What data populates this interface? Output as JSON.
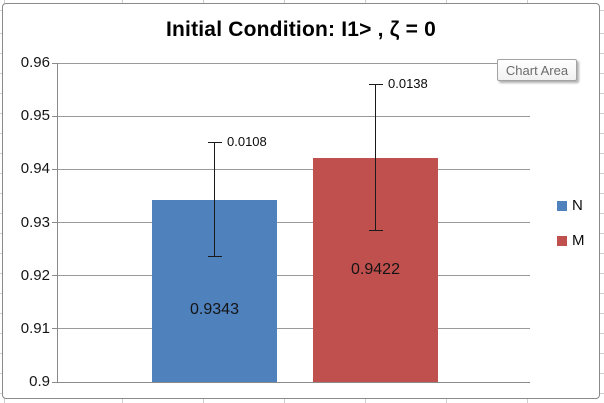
{
  "tooltip": {
    "label": "Chart Area"
  },
  "chart_data": {
    "type": "bar",
    "title": "Initial Condition: I1> , ζ = 0",
    "categories": [
      ""
    ],
    "series": [
      {
        "name": "N",
        "color": "#4F81BD",
        "values": [
          0.9343
        ],
        "errors": [
          0.0108
        ],
        "value_labels": [
          "0.9343"
        ],
        "error_labels": [
          "0.0108"
        ]
      },
      {
        "name": "M",
        "color": "#C0504D",
        "values": [
          0.9422
        ],
        "errors": [
          0.0138
        ],
        "value_labels": [
          "0.9422"
        ],
        "error_labels": [
          "0.0138"
        ]
      }
    ],
    "xlabel": "",
    "ylabel": "",
    "ylim": [
      0.9,
      0.96
    ],
    "yticks": [
      {
        "value": 0.96,
        "label": "0.96"
      },
      {
        "value": 0.95,
        "label": "0.95"
      },
      {
        "value": 0.94,
        "label": "0.94"
      },
      {
        "value": 0.93,
        "label": "0.93"
      },
      {
        "value": 0.92,
        "label": "0.92"
      },
      {
        "value": 0.91,
        "label": "0.91"
      },
      {
        "value": 0.9,
        "label": "0.9"
      }
    ],
    "grid": true,
    "legend_position": "right",
    "error_bars": true
  }
}
